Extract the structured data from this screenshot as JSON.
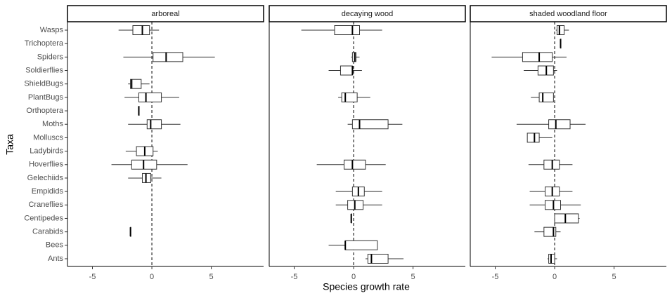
{
  "chart_data": {
    "type": "boxplot",
    "xlabel": "Species growth rate",
    "ylabel": "Taxa",
    "categories": [
      "Wasps",
      "Trichoptera",
      "Spiders",
      "Soldierflies",
      "ShieldBugs",
      "PlantBugs",
      "Orthoptera",
      "Moths",
      "Molluscs",
      "Ladybirds",
      "Hoverflies",
      "Gelechiids",
      "Empidids",
      "Craneflies",
      "Centipedes",
      "Carabids",
      "Bees",
      "Ants"
    ],
    "xlim": [
      -7.1,
      9.4
    ],
    "xticks": [
      -5,
      0,
      5
    ],
    "reference_line": 0,
    "panels": [
      {
        "title": "arboreal",
        "boxes": [
          [
            -2.8,
            -1.6,
            -0.8,
            -0.2,
            0.6
          ],
          null,
          [
            -2.4,
            0.1,
            1.2,
            2.6,
            5.3
          ],
          null,
          [
            -2.0,
            -1.8,
            -1.7,
            -0.9,
            -0.2
          ],
          [
            -2.3,
            -1.1,
            -0.5,
            0.8,
            2.3
          ],
          [
            -1.1,
            -1.1,
            -1.1,
            -1.1,
            -1.1
          ],
          [
            -2.0,
            -0.4,
            -0.1,
            0.8,
            2.4
          ],
          null,
          [
            -2.2,
            -1.3,
            -0.6,
            0.1,
            0.5
          ],
          [
            -3.4,
            -1.7,
            -0.7,
            0.4,
            3.0
          ],
          [
            -2.0,
            -0.8,
            -0.5,
            -0.1,
            0.8
          ],
          null,
          null,
          null,
          [
            -1.8,
            -1.8,
            -1.8,
            -1.8,
            -1.8
          ],
          null,
          null
        ]
      },
      {
        "title": "decaying wood",
        "boxes": [
          [
            -4.4,
            -1.6,
            -0.1,
            0.5,
            2.4
          ],
          null,
          [
            -0.2,
            -0.1,
            0.1,
            0.2,
            0.5
          ],
          [
            -2.1,
            -1.1,
            -0.1,
            -0.1,
            0.7
          ],
          null,
          [
            -1.3,
            -1.0,
            -0.7,
            0.3,
            1.4
          ],
          null,
          [
            -0.5,
            -0.1,
            0.5,
            2.9,
            4.1
          ],
          null,
          null,
          [
            -3.1,
            -0.8,
            -0.1,
            1.0,
            2.7
          ],
          null,
          [
            -1.5,
            -0.1,
            0.4,
            0.9,
            2.4
          ],
          [
            -1.5,
            -0.5,
            0.1,
            0.8,
            2.4
          ],
          [
            -0.2,
            -0.2,
            -0.2,
            -0.2,
            -0.2
          ],
          null,
          [
            -2.1,
            -0.7,
            -0.7,
            2.0,
            2.0
          ],
          [
            1.0,
            1.2,
            1.5,
            2.9,
            4.2
          ]
        ]
      },
      {
        "title": "shaded woodland floor",
        "boxes": [
          [
            0.1,
            0.2,
            0.4,
            0.8,
            1.2
          ],
          [
            0.5,
            0.5,
            0.5,
            0.5,
            0.5
          ],
          [
            -5.3,
            -2.7,
            -1.3,
            -0.2,
            1.0
          ],
          [
            -2.6,
            -1.4,
            -0.7,
            -0.1,
            0.2
          ],
          null,
          [
            -2.0,
            -1.3,
            -1.0,
            -0.1,
            -0.1
          ],
          null,
          [
            -3.2,
            -0.5,
            0.1,
            1.3,
            2.6
          ],
          [
            -2.3,
            -2.3,
            -1.7,
            -1.3,
            -0.2
          ],
          null,
          [
            -2.2,
            -0.9,
            -0.2,
            0.4,
            1.5
          ],
          null,
          [
            -2.1,
            -0.8,
            -0.2,
            0.4,
            1.5
          ],
          [
            -2.1,
            -0.8,
            -0.1,
            0.5,
            2.2
          ],
          [
            0.0,
            0.0,
            0.9,
            2.0,
            2.1
          ],
          [
            -1.7,
            -0.9,
            -0.1,
            0.1,
            0.5
          ],
          null,
          [
            -0.6,
            -0.5,
            -0.3,
            0.0,
            0.2
          ]
        ]
      }
    ]
  }
}
